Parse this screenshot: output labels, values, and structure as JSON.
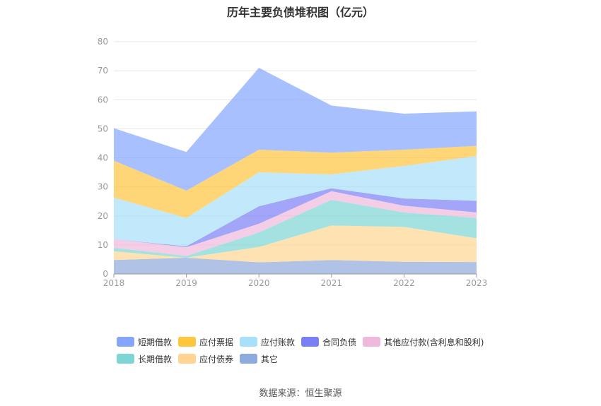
{
  "chart_data": {
    "type": "area",
    "stacked": true,
    "title": "历年主要负债堆积图（亿元）",
    "x": [
      "2018",
      "2019",
      "2020",
      "2021",
      "2022",
      "2023"
    ],
    "ylim": [
      0,
      80
    ],
    "yticks": [
      0,
      10,
      20,
      30,
      40,
      50,
      60,
      70,
      80
    ],
    "grid": true,
    "legend_position": "bottom",
    "series": [
      {
        "name": "其它",
        "color": "#8faadc",
        "values": [
          4.8,
          5.6,
          4.0,
          4.8,
          4.2,
          4.1
        ]
      },
      {
        "name": "应付债券",
        "color": "#ffd591",
        "values": [
          3.0,
          0.0,
          5.3,
          11.9,
          12.0,
          8.2
        ]
      },
      {
        "name": "长期借款",
        "color": "#7dd5d5",
        "values": [
          1.2,
          0.6,
          5.0,
          8.8,
          5.0,
          7.0
        ]
      },
      {
        "name": "其他应付款(含利息和股利)",
        "color": "#f0b8dc",
        "values": [
          3.0,
          3.0,
          3.0,
          3.0,
          2.3,
          1.9
        ]
      },
      {
        "name": "合同负债",
        "color": "#7b7ff5",
        "values": [
          0.0,
          0.3,
          6.0,
          1.0,
          2.5,
          4.0
        ]
      },
      {
        "name": "应付账款",
        "color": "#a6e0fa",
        "values": [
          14.3,
          9.8,
          11.7,
          4.8,
          11.2,
          15.4
        ]
      },
      {
        "name": "应付票据",
        "color": "#ffc53d",
        "values": [
          12.7,
          9.4,
          7.8,
          7.5,
          5.6,
          3.5
        ]
      },
      {
        "name": "短期借款",
        "color": "#85a5ff",
        "values": [
          11.2,
          13.3,
          28.2,
          16.2,
          12.4,
          11.9
        ]
      }
    ],
    "legend_order": [
      "短期借款",
      "应付票据",
      "应付账款",
      "合同负债",
      "其他应付款(含利息和股利)",
      "长期借款",
      "应付债券",
      "其它"
    ],
    "source": "数据来源：恒生聚源"
  }
}
